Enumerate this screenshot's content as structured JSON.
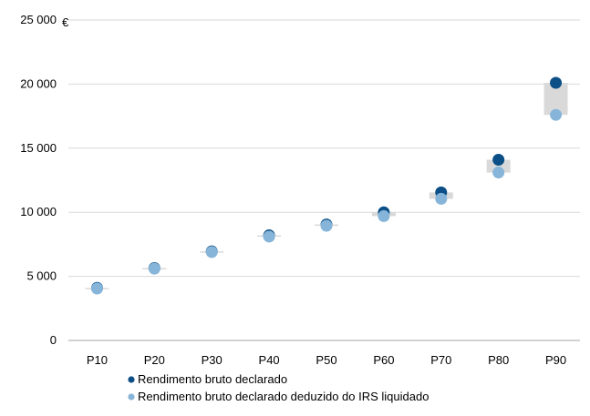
{
  "chart_data": {
    "type": "scatter",
    "unit": "€",
    "categories": [
      "P10",
      "P20",
      "P30",
      "P40",
      "P50",
      "P60",
      "P70",
      "P80",
      "P90"
    ],
    "ylim": [
      0,
      25000
    ],
    "yticks": [
      0,
      5000,
      10000,
      15000,
      20000,
      25000
    ],
    "ytick_labels": [
      "0",
      "5 000",
      "10 000",
      "15 000",
      "20 000",
      "25 000"
    ],
    "grid": true,
    "legend_position": "bottom-left",
    "series": [
      {
        "name": "Rendimento bruto declarado",
        "color": "#0b4f86",
        "values": [
          4100,
          5650,
          6950,
          8200,
          9050,
          10000,
          11550,
          14100,
          20100
        ]
      },
      {
        "name": "Rendimento bruto declarado deduzido do IRS liquidado",
        "color": "#86b5d9",
        "values": [
          4050,
          5600,
          6900,
          8100,
          8950,
          9700,
          11050,
          13100,
          17600
        ]
      }
    ],
    "gap_band_color": "#d9d9d9"
  }
}
